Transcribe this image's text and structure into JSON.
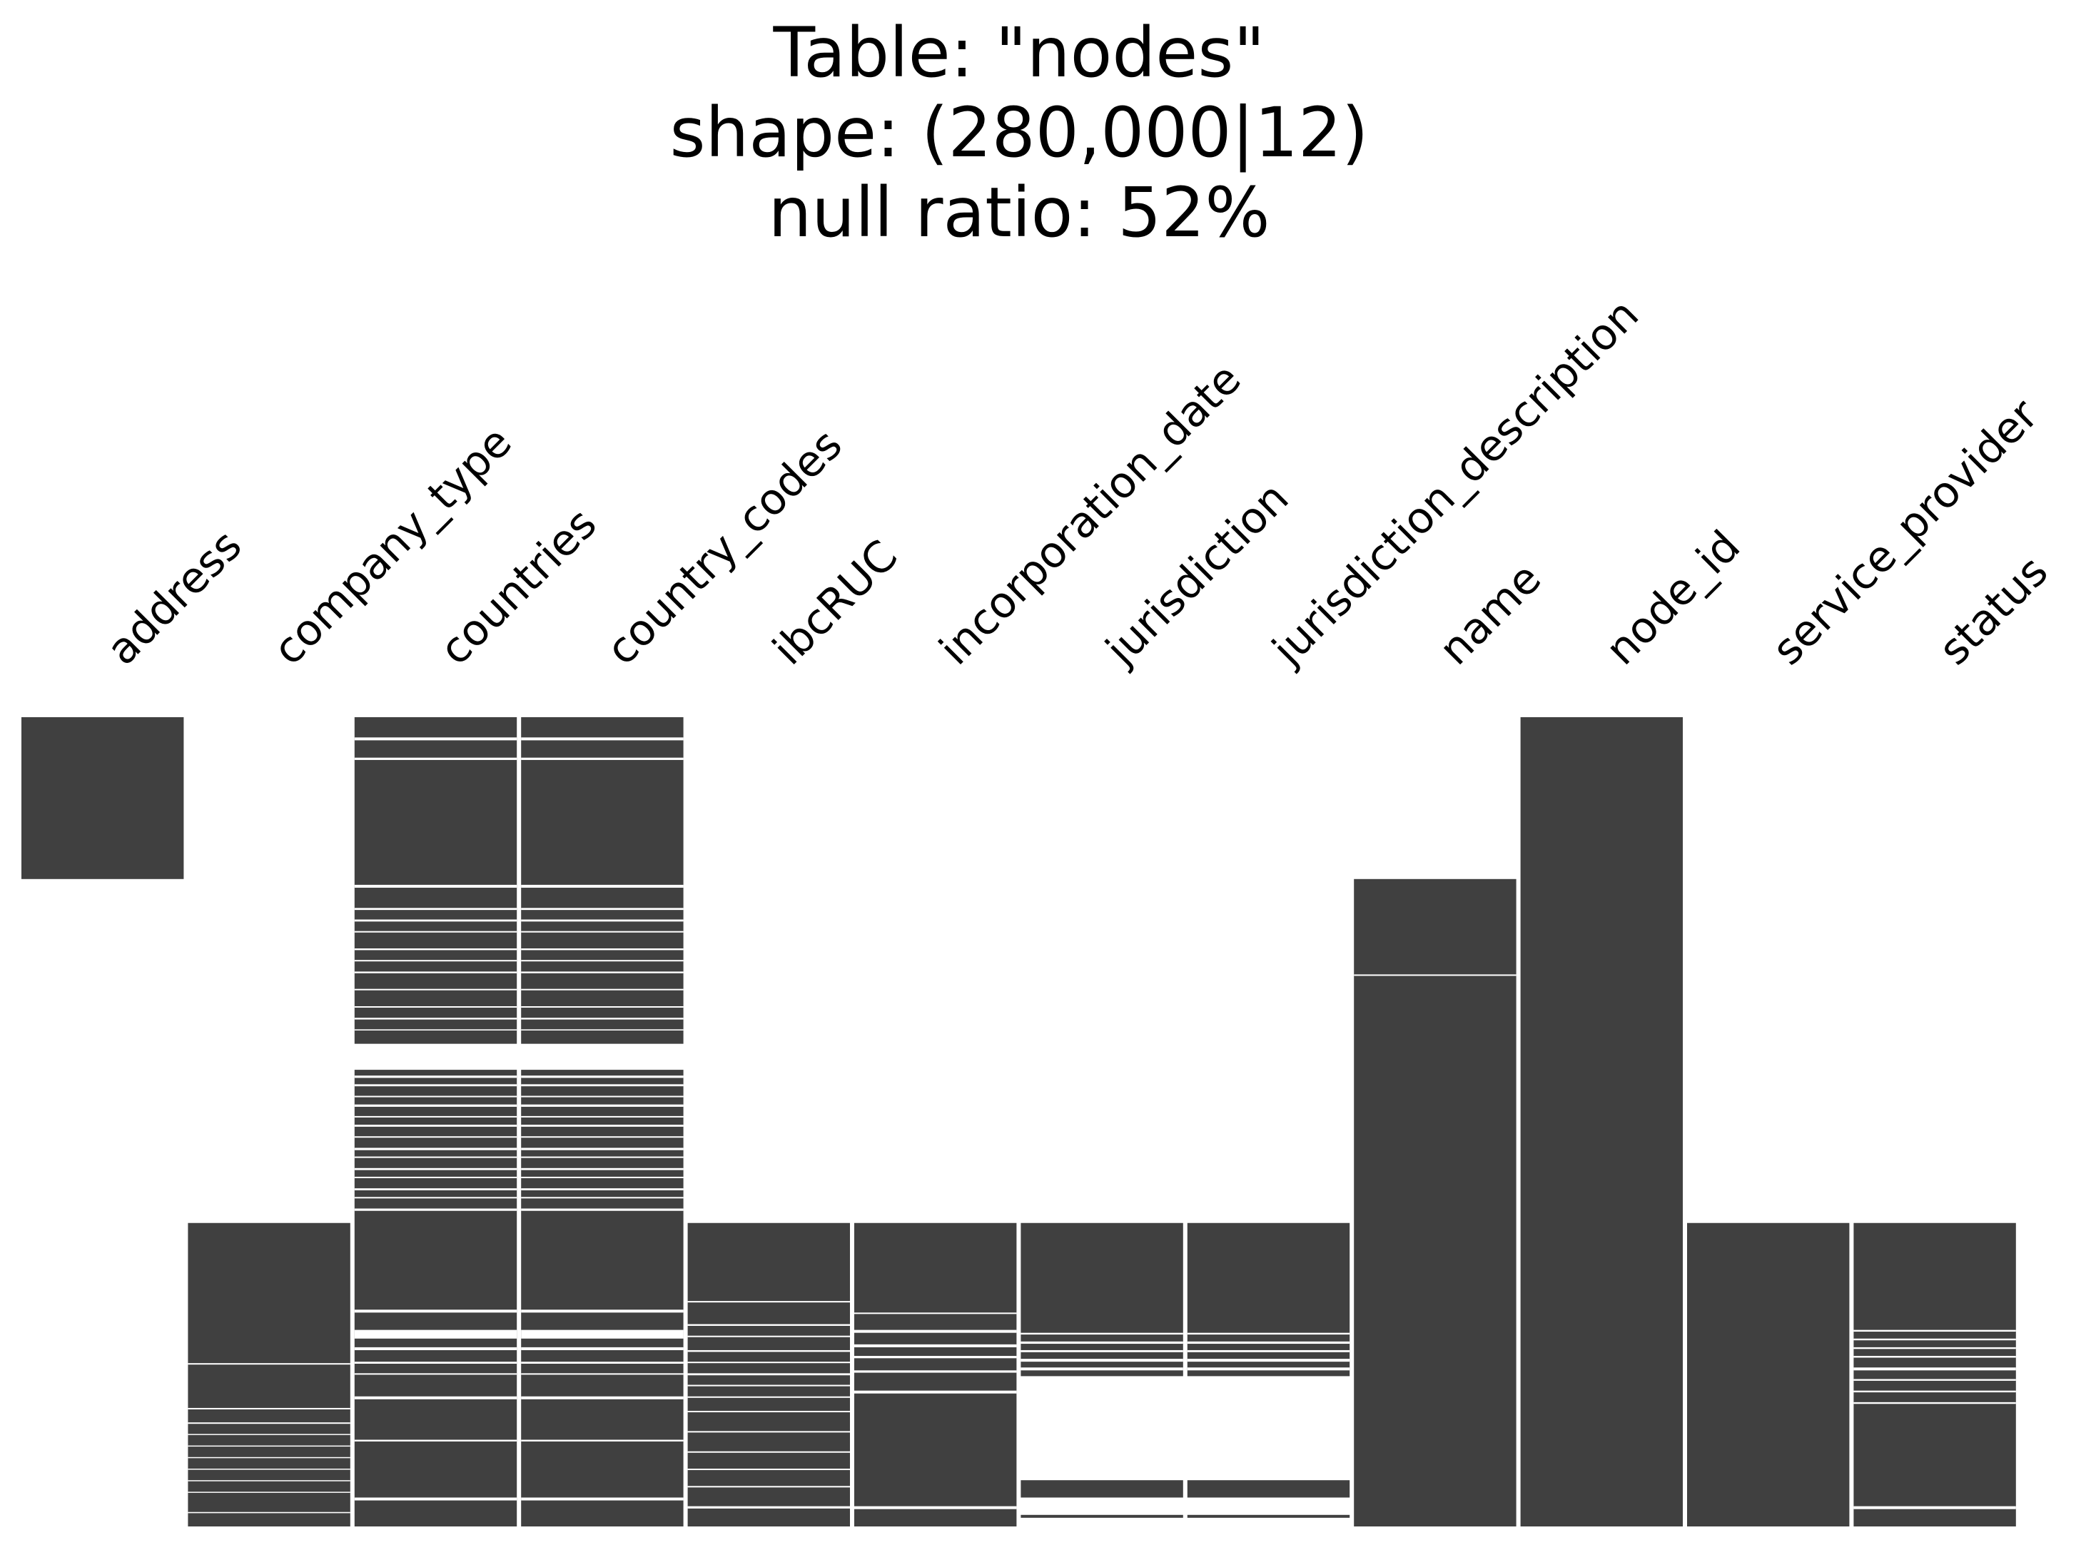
{
  "chart_data": {
    "type": "heatmap",
    "title_lines": [
      "Table: \"nodes\"",
      "shape: (280,000|12)",
      "null ratio: 52%"
    ],
    "xlabel": "",
    "ylabel": "",
    "grid": false,
    "legend": "none",
    "colors": {
      "present": "#404040",
      "missing": "#ffffff"
    },
    "rows": 280000,
    "columns": [
      {
        "name": "address",
        "present_rows": [
          [
            0,
            56000
          ]
        ],
        "missing_rows": []
      },
      {
        "name": "company_type",
        "present_rows": [
          [
            175000,
            280000
          ]
        ],
        "missing_rows": [
          [
            223500,
            224000
          ],
          [
            239000,
            239500
          ],
          [
            244000,
            244500
          ],
          [
            248000,
            248300
          ],
          [
            252000,
            252300
          ],
          [
            256000,
            256300
          ],
          [
            260000,
            260300
          ],
          [
            264000,
            264300
          ],
          [
            268000,
            268300
          ],
          [
            275000,
            275400
          ]
        ]
      },
      {
        "name": "countries",
        "present_rows": [
          [
            0,
            113000
          ],
          [
            122000,
            280000
          ]
        ],
        "missing_rows": [
          [
            7000,
            8000
          ],
          [
            14000,
            14800
          ],
          [
            58000,
            59000
          ],
          [
            66000,
            66700
          ],
          [
            70000,
            70700
          ],
          [
            74000,
            74500
          ],
          [
            80000,
            80600
          ],
          [
            84000,
            84500
          ],
          [
            88000,
            88600
          ],
          [
            94000,
            94500
          ],
          [
            100000,
            100500
          ],
          [
            104000,
            104600
          ],
          [
            108000,
            108400
          ],
          [
            124000,
            124800
          ],
          [
            127000,
            127700
          ],
          [
            131000,
            131500
          ],
          [
            134000,
            134800
          ],
          [
            138000,
            138500
          ],
          [
            141000,
            141700
          ],
          [
            145000,
            145500
          ],
          [
            149000,
            149800
          ],
          [
            152000,
            152500
          ],
          [
            156000,
            156700
          ],
          [
            159000,
            159500
          ],
          [
            163000,
            163700
          ],
          [
            166000,
            166500
          ],
          [
            170000,
            170800
          ],
          [
            205000,
            206000
          ],
          [
            212000,
            215000
          ],
          [
            218000,
            219000
          ],
          [
            223000,
            223700
          ],
          [
            227000,
            227500
          ],
          [
            235000,
            236000
          ],
          [
            250000,
            250600
          ],
          [
            270000,
            271000
          ]
        ]
      },
      {
        "name": "country_codes",
        "present_rows": [
          [
            0,
            113000
          ],
          [
            122000,
            280000
          ]
        ],
        "missing_rows": [
          [
            7000,
            8000
          ],
          [
            14000,
            14800
          ],
          [
            58000,
            59000
          ],
          [
            66000,
            66700
          ],
          [
            70000,
            70700
          ],
          [
            74000,
            74500
          ],
          [
            80000,
            80600
          ],
          [
            84000,
            84500
          ],
          [
            88000,
            88600
          ],
          [
            94000,
            94500
          ],
          [
            100000,
            100500
          ],
          [
            104000,
            104600
          ],
          [
            108000,
            108400
          ],
          [
            124000,
            124800
          ],
          [
            127000,
            127700
          ],
          [
            131000,
            131500
          ],
          [
            134000,
            134800
          ],
          [
            138000,
            138500
          ],
          [
            141000,
            141700
          ],
          [
            145000,
            145500
          ],
          [
            149000,
            149800
          ],
          [
            152000,
            152500
          ],
          [
            156000,
            156700
          ],
          [
            159000,
            159500
          ],
          [
            163000,
            163700
          ],
          [
            166000,
            166500
          ],
          [
            170000,
            170800
          ],
          [
            205000,
            206000
          ],
          [
            212000,
            215000
          ],
          [
            218000,
            219000
          ],
          [
            223000,
            223700
          ],
          [
            227000,
            227500
          ],
          [
            235000,
            236000
          ],
          [
            250000,
            250600
          ],
          [
            270000,
            271000
          ]
        ]
      },
      {
        "name": "ibcRUC",
        "present_rows": [
          [
            175000,
            280000
          ]
        ],
        "missing_rows": [
          [
            202000,
            202500
          ],
          [
            210000,
            210600
          ],
          [
            214000,
            214500
          ],
          [
            219000,
            219600
          ],
          [
            223000,
            223500
          ],
          [
            227000,
            227700
          ],
          [
            231000,
            231500
          ],
          [
            235000,
            235500
          ],
          [
            240000,
            240500
          ],
          [
            247000,
            247500
          ],
          [
            254000,
            254500
          ],
          [
            260000,
            260500
          ],
          [
            266000,
            266500
          ],
          [
            273000,
            273800
          ]
        ]
      },
      {
        "name": "incorporation_date",
        "present_rows": [
          [
            175000,
            280000
          ]
        ],
        "missing_rows": [
          [
            206000,
            206500
          ],
          [
            212000,
            213000
          ],
          [
            217000,
            218000
          ],
          [
            221000,
            221800
          ],
          [
            226000,
            226800
          ],
          [
            233000,
            234000
          ],
          [
            273000,
            274000
          ]
        ]
      },
      {
        "name": "jurisdiction",
        "present_rows": [
          [
            175000,
            228000
          ],
          [
            264000,
            270000
          ],
          [
            276000,
            277000
          ]
        ],
        "missing_rows": [
          [
            213000,
            213600
          ],
          [
            216000,
            216800
          ],
          [
            219000,
            219700
          ],
          [
            222000,
            223000
          ],
          [
            225000,
            226000
          ]
        ]
      },
      {
        "name": "jurisdiction_description",
        "present_rows": [
          [
            175000,
            228000
          ],
          [
            264000,
            270000
          ],
          [
            276000,
            277000
          ]
        ],
        "missing_rows": [
          [
            213000,
            213600
          ],
          [
            216000,
            216800
          ],
          [
            219000,
            219700
          ],
          [
            222000,
            223000
          ],
          [
            225000,
            226000
          ]
        ]
      },
      {
        "name": "name",
        "present_rows": [
          [
            56000,
            280000
          ]
        ],
        "missing_rows": [
          [
            89000,
            89500
          ]
        ]
      },
      {
        "name": "node_id",
        "present_rows": [
          [
            0,
            280000
          ]
        ],
        "missing_rows": []
      },
      {
        "name": "service_provider",
        "present_rows": [
          [
            175000,
            280000
          ]
        ],
        "missing_rows": []
      },
      {
        "name": "status",
        "present_rows": [
          [
            175000,
            280000
          ]
        ],
        "missing_rows": [
          [
            212000,
            212600
          ],
          [
            215000,
            215600
          ],
          [
            218000,
            218600
          ],
          [
            221000,
            221600
          ],
          [
            225000,
            226000
          ],
          [
            229000,
            229600
          ],
          [
            233000,
            233600
          ],
          [
            237000,
            237600
          ],
          [
            273000,
            274000
          ]
        ]
      }
    ]
  }
}
